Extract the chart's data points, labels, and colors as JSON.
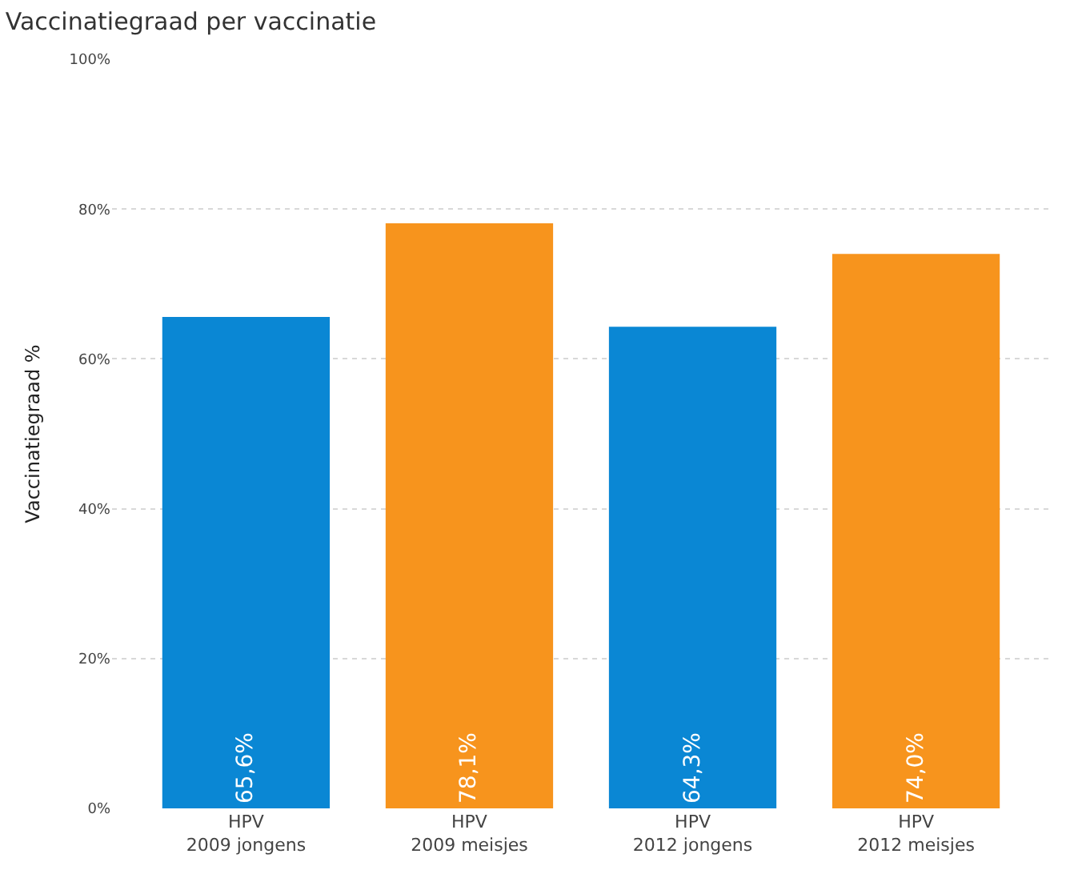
{
  "chart_data": {
    "type": "bar",
    "title": "Vaccinatiegraad per vaccinatie",
    "ylabel": "Vaccinatiegraad %",
    "categories": [
      "HPV\n2009 jongens",
      "HPV\n2009 meisjes",
      "HPV\n2012 jongens",
      "HPV\n2012 meisjes"
    ],
    "values": [
      65.6,
      78.1,
      64.3,
      74.0
    ],
    "colors": [
      "#0a87d4",
      "#f7941d",
      "#0a87d4",
      "#f7941d"
    ],
    "value_labels": [
      "65,6%",
      "78,1%",
      "64,3%",
      "74,0%"
    ],
    "ylim": [
      0,
      100
    ],
    "yticks": [
      {
        "value": 0,
        "label": "0%"
      },
      {
        "value": 20,
        "label": "20%"
      },
      {
        "value": 40,
        "label": "40%"
      },
      {
        "value": 60,
        "label": "60%"
      },
      {
        "value": 80,
        "label": "80%"
      },
      {
        "value": 100,
        "label": "100%"
      }
    ],
    "grid": "y",
    "legend": false
  }
}
